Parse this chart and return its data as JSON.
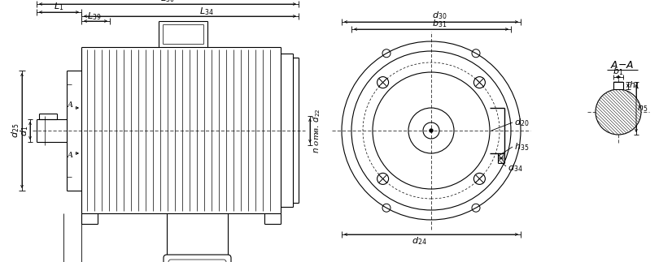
{
  "bg_color": "#ffffff",
  "line_color": "#000000",
  "lw": 0.8,
  "tlw": 0.5,
  "dlw": 0.6,
  "fig_width": 8.26,
  "fig_height": 3.23,
  "dpi": 100
}
